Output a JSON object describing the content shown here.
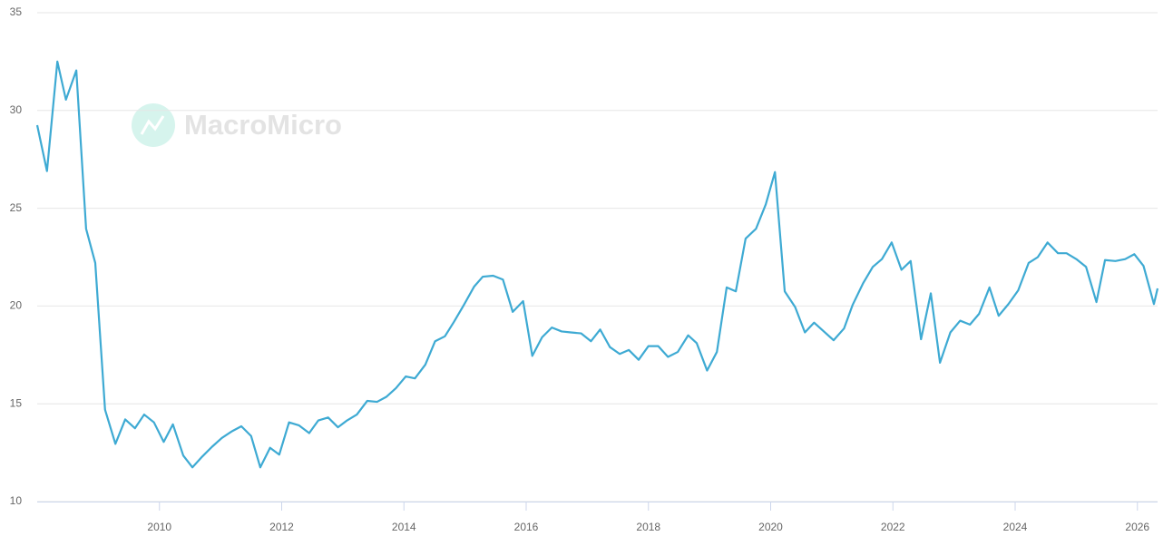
{
  "chart_data": {
    "type": "line",
    "watermark": "MacroMicro",
    "xlim": [
      2008,
      2026.33
    ],
    "xticks": [
      2010,
      2012,
      2014,
      2016,
      2018,
      2020,
      2022,
      2024,
      2026
    ],
    "ylim": [
      10,
      35
    ],
    "yticks": [
      10,
      15,
      20,
      25,
      30,
      35
    ],
    "grid": true,
    "x": [
      2008.0,
      2008.16,
      2008.33,
      2008.47,
      2008.64,
      2008.8,
      2008.95,
      2009.11,
      2009.28,
      2009.44,
      2009.6,
      2009.75,
      2009.91,
      2010.07,
      2010.22,
      2010.39,
      2010.54,
      2010.7,
      2010.86,
      2011.02,
      2011.19,
      2011.34,
      2011.5,
      2011.65,
      2011.81,
      2011.96,
      2012.12,
      2012.28,
      2012.45,
      2012.6,
      2012.76,
      2012.92,
      2013.07,
      2013.23,
      2013.4,
      2013.56,
      2013.71,
      2013.87,
      2014.03,
      2014.18,
      2014.35,
      2014.51,
      2014.67,
      2014.82,
      2014.98,
      2015.15,
      2015.29,
      2015.46,
      2015.62,
      2015.78,
      2015.95,
      2016.1,
      2016.26,
      2016.42,
      2016.58,
      2016.73,
      2016.9,
      2017.06,
      2017.21,
      2017.37,
      2017.53,
      2017.68,
      2017.84,
      2018.0,
      2018.16,
      2018.32,
      2018.48,
      2018.65,
      2018.79,
      2018.96,
      2019.12,
      2019.28,
      2019.43,
      2019.59,
      2019.76,
      2019.92,
      2020.07,
      2020.23,
      2020.4,
      2020.56,
      2020.71,
      2020.87,
      2021.03,
      2021.2,
      2021.34,
      2021.51,
      2021.67,
      2021.82,
      2021.98,
      2022.14,
      2022.29,
      2022.46,
      2022.62,
      2022.77,
      2022.94,
      2023.1,
      2023.26,
      2023.41,
      2023.58,
      2023.73,
      2023.89,
      2024.05,
      2024.22,
      2024.37,
      2024.53,
      2024.7,
      2024.84,
      2025.0,
      2025.16,
      2025.33,
      2025.47,
      2025.64,
      2025.8,
      2025.95,
      2026.1,
      2026.27,
      2026.33
    ],
    "series": [
      {
        "color": "#3eaad3",
        "values": [
          29.25,
          26.9,
          32.5,
          30.55,
          32.05,
          23.95,
          22.2,
          14.7,
          12.95,
          14.2,
          13.75,
          14.45,
          14.05,
          13.05,
          13.95,
          12.35,
          11.75,
          12.3,
          12.8,
          13.25,
          13.6,
          13.85,
          13.35,
          11.75,
          12.75,
          12.4,
          14.05,
          13.9,
          13.5,
          14.15,
          14.3,
          13.8,
          14.15,
          14.45,
          15.15,
          15.1,
          15.35,
          15.8,
          16.4,
          16.3,
          17.0,
          18.2,
          18.45,
          19.2,
          20.05,
          21.0,
          21.5,
          21.55,
          21.35,
          19.7,
          20.25,
          17.45,
          18.4,
          18.9,
          18.7,
          18.65,
          18.6,
          18.2,
          18.8,
          17.9,
          17.55,
          17.75,
          17.25,
          17.95,
          17.95,
          17.4,
          17.65,
          18.5,
          18.1,
          16.7,
          17.65,
          20.95,
          20.75,
          23.45,
          23.95,
          25.2,
          26.85,
          20.75,
          19.95,
          18.65,
          19.15,
          18.7,
          18.25,
          18.85,
          20.05,
          21.15,
          22.0,
          22.4,
          23.25,
          21.85,
          22.3,
          18.3,
          20.65,
          17.1,
          18.65,
          19.25,
          19.05,
          19.6,
          20.95,
          19.5,
          20.1,
          20.8,
          22.2,
          22.5,
          23.25,
          22.7,
          22.7,
          22.4,
          22.0,
          20.2,
          22.35,
          22.3,
          22.4,
          22.65,
          22.05,
          20.1,
          20.9
        ]
      }
    ]
  }
}
